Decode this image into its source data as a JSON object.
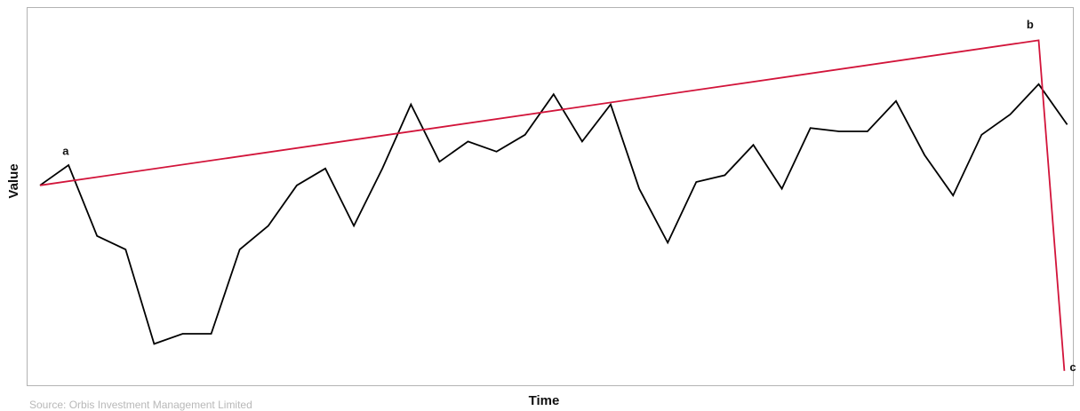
{
  "chart_data": {
    "type": "line",
    "title": "",
    "xlabel": "Time",
    "ylabel": "Value",
    "grid": false,
    "ylim": [
      0,
      100
    ],
    "series": [
      {
        "color": "#000000",
        "x": [
          0,
          1,
          2,
          3,
          4,
          5,
          6,
          7,
          8,
          9,
          10,
          11,
          12,
          13,
          14,
          15,
          16,
          17,
          18,
          19,
          20,
          21,
          22,
          23,
          24,
          25,
          26,
          27,
          28,
          29,
          30,
          31,
          32,
          33,
          34,
          35,
          36
        ],
        "values": [
          49,
          55,
          34,
          30,
          2,
          5,
          5,
          30,
          37,
          49,
          54,
          37,
          54,
          73,
          56,
          62,
          59,
          64,
          76,
          62,
          73,
          48,
          32,
          50,
          52,
          61,
          48,
          66,
          65,
          65,
          74,
          58,
          46,
          64,
          70,
          79,
          67
        ]
      },
      {
        "color": "#d2143a",
        "x": [
          0,
          35.0,
          35.9
        ],
        "values": [
          49,
          92,
          -6
        ]
      }
    ],
    "annotations": [
      {
        "text": "a",
        "x": 0.9,
        "y": 58
      },
      {
        "text": "b",
        "x": 34.7,
        "y": 95.5
      },
      {
        "text": "c",
        "x": 36.2,
        "y": -6
      }
    ]
  },
  "source": "Source: Orbis Investment Management Limited"
}
